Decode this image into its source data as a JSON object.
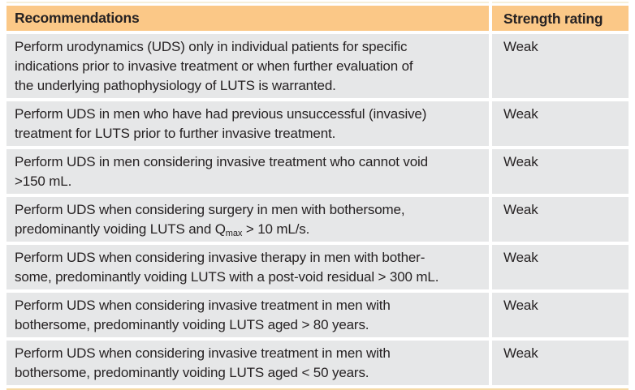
{
  "colors": {
    "header_bg": "#FBC887",
    "row_bg": "#E6E7E8",
    "text": "#262223",
    "top_rule": "#F6EFD9",
    "bottom_rule": "#F5D9A4"
  },
  "table": {
    "header": {
      "recommendations": "Recommendations",
      "strength_rating": "Strength rating"
    },
    "rows": [
      {
        "text": "Perform urodynamics (UDS) only in individual patients for specific\nindications prior to invasive treatment or when further evaluation of\nthe underlying pathophysiology of LUTS is warranted.",
        "strength": "Weak"
      },
      {
        "text": "Perform UDS in men who have had previous unsuccessful (invasive)\ntreatment for LUTS prior to further invasive treatment.",
        "strength": "Weak"
      },
      {
        "text": "Perform UDS in men considering invasive treatment who cannot void\n>150 mL.",
        "strength": "Weak"
      },
      {
        "text_pre": "Perform UDS when considering surgery in men with bothersome,\npredominantly voiding LUTS and Q",
        "text_sub": "max",
        "text_post": " > 10 mL/s.",
        "strength": "Weak"
      },
      {
        "text": "Perform UDS when considering invasive therapy in men with bother-\nsome, predominantly voiding LUTS with a post-void residual > 300 mL.",
        "strength": "Weak"
      },
      {
        "text": "Perform UDS when considering invasive treatment in men with\nbothersome, predominantly voiding LUTS aged > 80 years.",
        "strength": "Weak"
      },
      {
        "text": "Perform UDS when considering invasive treatment in men with\nbothersome, predominantly voiding LUTS aged < 50 years.",
        "strength": "Weak"
      }
    ]
  }
}
